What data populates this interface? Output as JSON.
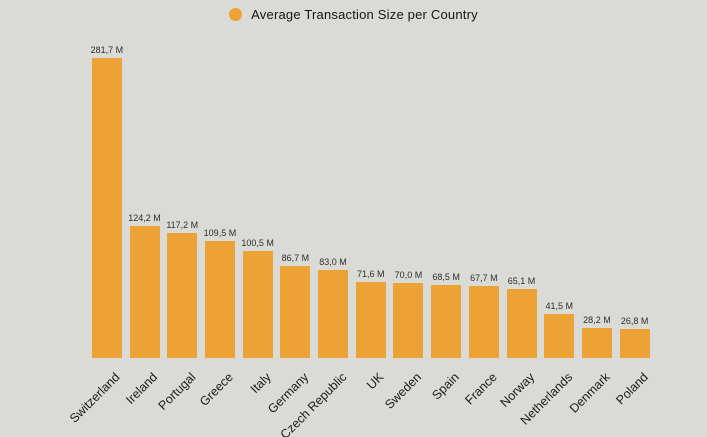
{
  "background_color": "#dadad6",
  "chart_data": {
    "type": "bar",
    "title": "Average Transaction Size per Country",
    "legend_position": "top-center",
    "grid": false,
    "bar_color": "#eca235",
    "categories": [
      "Switzerland",
      "Ireland",
      "Portugal",
      "Greece",
      "Italy",
      "Germany",
      "Czech Republic",
      "UK",
      "Sweden",
      "Spain",
      "France",
      "Norway",
      "Netherlands",
      "Denmark",
      "Poland"
    ],
    "values": [
      281.7,
      124.2,
      117.2,
      109.5,
      100.5,
      86.7,
      83.0,
      71.6,
      70.0,
      68.5,
      67.7,
      65.1,
      41.5,
      28.2,
      26.8
    ],
    "value_labels": [
      "281,7 M",
      "124,2 M",
      "117,2 M",
      "109,5 M",
      "100,5 M",
      "86,7 M",
      "83,0 M",
      "71,6 M",
      "70,0 M",
      "68,5 M",
      "67,7 M",
      "65,1 M",
      "41,5 M",
      "28,2 M",
      "26,8 M"
    ],
    "ylabel": "",
    "xlabel": "",
    "ylim": [
      0,
      300
    ]
  }
}
